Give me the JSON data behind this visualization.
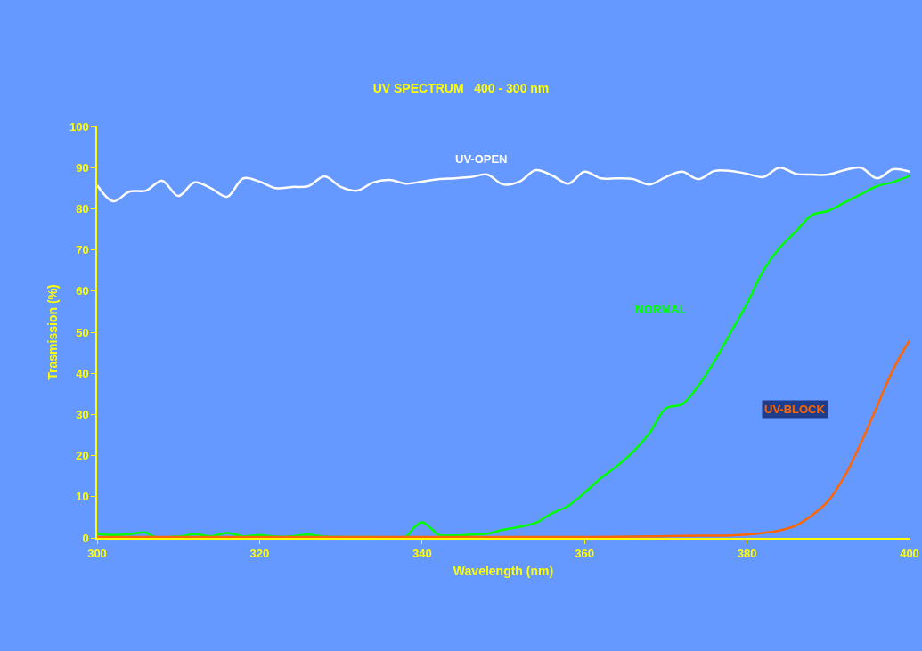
{
  "chart_data": {
    "type": "line",
    "title": "UV SPECTRUM   400 - 300 nm",
    "xlabel": "Wavelength (nm)",
    "ylabel": "Trasmission (%)",
    "xlim": [
      300,
      400
    ],
    "xticks": [
      300,
      320,
      340,
      360,
      380,
      400
    ],
    "ylim": [
      0,
      100
    ],
    "yticks": [
      0,
      10,
      20,
      30,
      40,
      50,
      60,
      70,
      80,
      90,
      100
    ],
    "grid": false,
    "marker": "none",
    "line_style": "solid",
    "series": [
      {
        "name": "UV-OPEN",
        "color": "#ffffff",
        "x": [
          300,
          302,
          304,
          306,
          308,
          310,
          312,
          314,
          316,
          318,
          320,
          322,
          324,
          326,
          328,
          330,
          332,
          334,
          336,
          338,
          340,
          342,
          344,
          346,
          348,
          350,
          352,
          354,
          356,
          358,
          360,
          362,
          364,
          366,
          368,
          370,
          372,
          374,
          376,
          378,
          380,
          382,
          384,
          386,
          388,
          390,
          392,
          394,
          396,
          398,
          400
        ],
        "values": [
          85.7,
          81.8,
          84.2,
          84.4,
          86.8,
          83.1,
          86.4,
          85,
          82.9,
          87.4,
          86.6,
          85,
          85.3,
          85.5,
          87.9,
          85.3,
          84.4,
          86.4,
          87,
          86.1,
          86.6,
          87.2,
          87.4,
          87.7,
          88.3,
          85.9,
          86.6,
          89.4,
          88.1,
          86.1,
          89,
          87.4,
          87.4,
          87.2,
          85.9,
          87.7,
          89,
          87.2,
          89.2,
          89.2,
          88.5,
          87.7,
          90,
          88.5,
          88.3,
          88.3,
          89.4,
          90,
          87.4,
          89.6,
          89
        ]
      },
      {
        "name": "NORMAL",
        "color": "#00ff00",
        "x": [
          300,
          302,
          304,
          306,
          307,
          310,
          312,
          314,
          316,
          318,
          320,
          322,
          324,
          326,
          328,
          330,
          334,
          336,
          338,
          339,
          340,
          341,
          342,
          344,
          346,
          348,
          350,
          352,
          354,
          356,
          358,
          360,
          362,
          364,
          366,
          368,
          370,
          372,
          374,
          376,
          378,
          380,
          382,
          384,
          386,
          388,
          390,
          392,
          394,
          396,
          398,
          400
        ],
        "values": [
          1,
          0.7,
          0.9,
          1.3,
          0.3,
          0.3,
          0.9,
          0.4,
          1.2,
          0.4,
          0.7,
          0.3,
          0.4,
          0.8,
          0.3,
          0.2,
          0.2,
          0.1,
          0.3,
          2.5,
          3.8,
          2.5,
          0.8,
          0.6,
          0.8,
          1,
          2,
          2.7,
          3.7,
          6,
          7.8,
          11,
          14.5,
          17.5,
          21,
          25.5,
          31.5,
          32.5,
          37,
          43,
          50,
          57,
          65,
          70.5,
          74.5,
          78.5,
          79.5,
          81.5,
          83.5,
          85.5,
          86.5,
          88
        ]
      },
      {
        "name": "UV-BLOCK",
        "color": "#ff6600",
        "x": [
          300,
          310,
          320,
          330,
          340,
          350,
          360,
          366,
          372,
          378,
          380,
          382,
          384,
          386,
          388,
          390,
          392,
          394,
          396,
          398,
          400
        ],
        "values": [
          0.2,
          0.2,
          0.2,
          0.2,
          0.2,
          0.2,
          0.2,
          0.3,
          0.5,
          0.6,
          0.8,
          1.2,
          1.8,
          3,
          5.5,
          9,
          15,
          23,
          32,
          41,
          48
        ]
      }
    ]
  }
}
